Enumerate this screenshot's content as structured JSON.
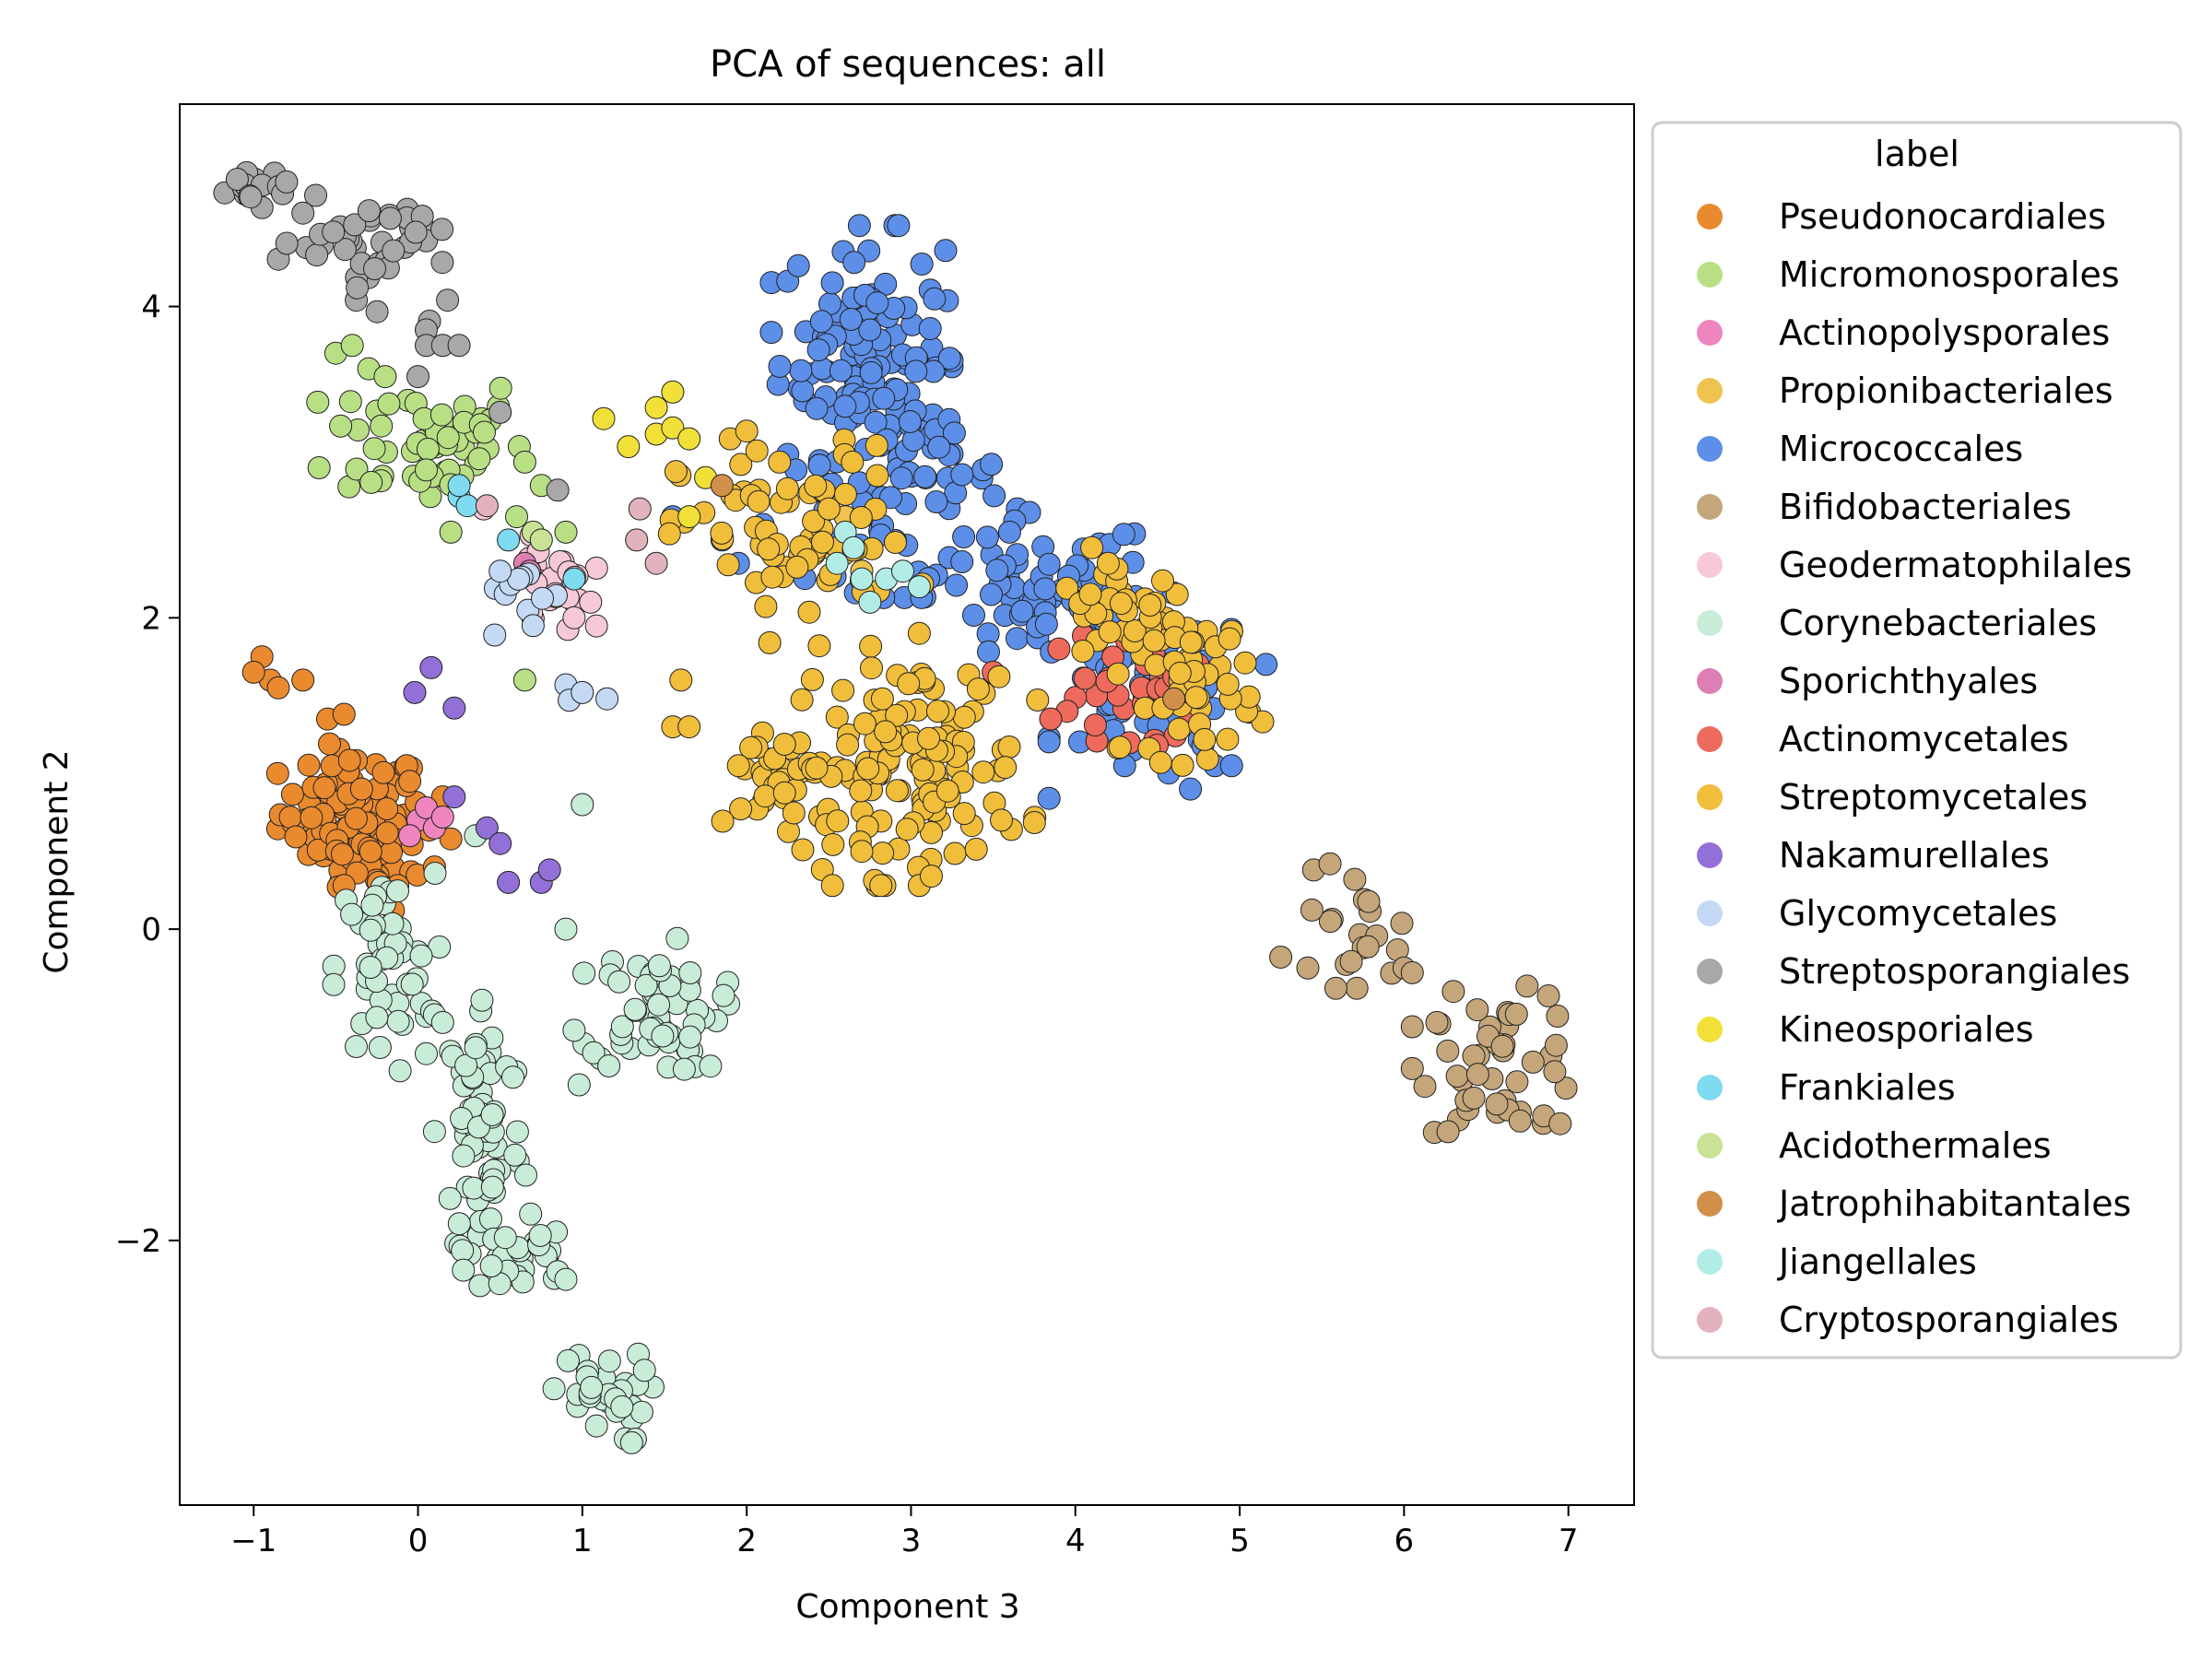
{
  "chart_data": {
    "type": "scatter",
    "title": "PCA of sequences: all",
    "xlabel": "Component 3",
    "ylabel": "Component 2",
    "xlim": [
      -1.45,
      7.4
    ],
    "ylim": [
      -3.7,
      5.3
    ],
    "xticks": [
      -1,
      0,
      1,
      2,
      3,
      4,
      5,
      6,
      7
    ],
    "xtick_labels": [
      "−1",
      "0",
      "1",
      "2",
      "3",
      "4",
      "5",
      "6",
      "7"
    ],
    "yticks": [
      -2,
      0,
      2,
      4
    ],
    "ytick_labels": [
      "−2",
      "0",
      "2",
      "4"
    ],
    "grid": false,
    "legend": {
      "title": "label",
      "placement": "outside-right"
    },
    "series": [
      {
        "name": "Pseudonocardiales",
        "color": "#ea8a2f",
        "clusters": [
          {
            "center": [
              -0.4,
              0.75
            ],
            "spread": [
              0.22,
              0.2
            ],
            "n": 90
          },
          {
            "center": [
              -0.2,
              0.45
            ],
            "spread": [
              0.15,
              0.12
            ],
            "n": 20
          }
        ],
        "points": [
          [
            -0.95,
            1.75
          ],
          [
            -0.9,
            1.6
          ],
          [
            -0.85,
            1.55
          ],
          [
            -0.7,
            1.6
          ],
          [
            -0.55,
            1.35
          ],
          [
            -0.45,
            1.38
          ],
          [
            -0.05,
            0.95
          ],
          [
            0.15,
            0.85
          ],
          [
            0.2,
            0.58
          ],
          [
            0.1,
            0.4
          ],
          [
            -0.45,
            0.28
          ],
          [
            -0.15,
            0.12
          ],
          [
            -1.0,
            1.65
          ]
        ]
      },
      {
        "name": "Micromonosporales",
        "color": "#b9df85",
        "clusters": [
          {
            "center": [
              0.05,
              3.15
            ],
            "spread": [
              0.3,
              0.22
            ],
            "n": 55
          }
        ],
        "points": [
          [
            -0.5,
            3.7
          ],
          [
            -0.4,
            3.75
          ],
          [
            -0.3,
            3.6
          ],
          [
            -0.2,
            3.55
          ],
          [
            0.65,
            3.0
          ],
          [
            0.75,
            2.85
          ],
          [
            0.6,
            2.65
          ],
          [
            0.9,
            2.55
          ],
          [
            0.65,
            1.6
          ],
          [
            0.2,
            2.55
          ],
          [
            0.05,
            2.95
          ]
        ]
      },
      {
        "name": "Actinopolysporales",
        "color": "#ef85bf",
        "clusters": [],
        "points": [
          [
            0.0,
            0.7
          ],
          [
            0.05,
            0.78
          ],
          [
            0.1,
            0.65
          ],
          [
            0.15,
            0.72
          ],
          [
            -0.05,
            0.6
          ]
        ]
      },
      {
        "name": "Propionibacteriales",
        "color": "#f0c350",
        "clusters": [],
        "points": [
          [
            2.6,
            2.65
          ],
          [
            2.5,
            2.45
          ],
          [
            2.7,
            2.3
          ]
        ]
      },
      {
        "name": "Micrococcales",
        "color": "#5d8fe8",
        "clusters": [
          {
            "center": [
              2.7,
              3.75
            ],
            "spread": [
              0.25,
              0.35
            ],
            "n": 110
          },
          {
            "center": [
              2.95,
              2.9
            ],
            "spread": [
              0.3,
              0.35
            ],
            "n": 70
          },
          {
            "center": [
              3.8,
              2.15
            ],
            "spread": [
              0.35,
              0.25
            ],
            "n": 70
          },
          {
            "center": [
              4.5,
              1.5
            ],
            "spread": [
              0.3,
              0.3
            ],
            "n": 45
          }
        ],
        "points": [
          [
            1.55,
            2.65
          ],
          [
            1.85,
            2.5
          ],
          [
            1.95,
            2.35
          ],
          [
            2.1,
            2.6
          ],
          [
            2.25,
            3.05
          ],
          [
            2.3,
            2.95
          ],
          [
            4.85,
            1.05
          ],
          [
            4.95,
            1.05
          ],
          [
            4.7,
            0.9
          ],
          [
            4.35,
            1.15
          ],
          [
            4.3,
            1.05
          ],
          [
            3.6,
            2.55
          ]
        ]
      },
      {
        "name": "Bifidobacteriales",
        "color": "#c4a67a",
        "clusters": [
          {
            "center": [
              6.6,
              -0.85
            ],
            "spread": [
              0.25,
              0.22
            ],
            "n": 45
          },
          {
            "center": [
              5.7,
              -0.05
            ],
            "spread": [
              0.2,
              0.15
            ],
            "n": 18
          }
        ],
        "points": [
          [
            5.25,
            -0.18
          ],
          [
            5.45,
            0.38
          ],
          [
            5.55,
            0.42
          ],
          [
            5.7,
            0.32
          ],
          [
            6.0,
            -0.25
          ],
          [
            6.05,
            -0.28
          ],
          [
            6.85,
            -1.2
          ],
          [
            6.95,
            -1.25
          ],
          [
            6.2,
            -0.6
          ],
          [
            6.3,
            -0.4
          ]
        ]
      },
      {
        "name": "Geodermatophilales",
        "color": "#f7c9d7",
        "clusters": [
          {
            "center": [
              0.8,
              2.2
            ],
            "spread": [
              0.13,
              0.15
            ],
            "n": 28
          }
        ],
        "points": [
          [
            0.4,
            2.7
          ],
          [
            0.95,
            2.0
          ],
          [
            1.05,
            2.1
          ]
        ]
      },
      {
        "name": "Corynebacteriales",
        "color": "#c9ecd8",
        "clusters": [
          {
            "center": [
              -0.2,
              -0.25
            ],
            "spread": [
              0.15,
              0.3
            ],
            "n": 50
          },
          {
            "center": [
              0.4,
              -1.3
            ],
            "spread": [
              0.12,
              0.45
            ],
            "n": 75
          },
          {
            "center": [
              0.6,
              -2.1
            ],
            "spread": [
              0.15,
              0.15
            ],
            "n": 25
          },
          {
            "center": [
              1.45,
              -0.5
            ],
            "spread": [
              0.2,
              0.2
            ],
            "n": 60
          },
          {
            "center": [
              1.1,
              -3.0
            ],
            "spread": [
              0.15,
              0.15
            ],
            "n": 30
          }
        ],
        "points": [
          [
            0.9,
            0.0
          ],
          [
            1.0,
            0.8
          ],
          [
            0.35,
            0.6
          ],
          [
            0.1,
            -0.55
          ],
          [
            0.15,
            -0.6
          ],
          [
            0.05,
            -0.8
          ],
          [
            0.1,
            -1.3
          ],
          [
            0.85,
            -2.2
          ],
          [
            0.9,
            -2.25
          ],
          [
            1.78,
            -0.88
          ],
          [
            1.62,
            -0.9
          ],
          [
            1.3,
            -3.3
          ],
          [
            0.95,
            -0.65
          ],
          [
            0.98,
            -1.0
          ]
        ]
      },
      {
        "name": "Sporichthyales",
        "color": "#de7fb3",
        "clusters": [],
        "points": [
          [
            0.65,
            2.35
          ],
          [
            0.68,
            2.3
          ]
        ]
      },
      {
        "name": "Actinomycetales",
        "color": "#ee6a5c",
        "clusters": [
          {
            "center": [
              4.35,
              1.5
            ],
            "spread": [
              0.18,
              0.2
            ],
            "n": 30
          }
        ],
        "points": [
          [
            3.5,
            1.65
          ],
          [
            3.9,
            1.8
          ],
          [
            3.95,
            1.4
          ],
          [
            3.85,
            1.35
          ],
          [
            4.55,
            1.55
          ],
          [
            4.6,
            1.62
          ]
        ]
      },
      {
        "name": "Streptomycetales",
        "color": "#f0be3b",
        "clusters": [
          {
            "center": [
              2.3,
              2.5
            ],
            "spread": [
              0.35,
              0.3
            ],
            "n": 70
          },
          {
            "center": [
              2.25,
              0.95
            ],
            "spread": [
              0.18,
              0.2
            ],
            "n": 35
          },
          {
            "center": [
              3.0,
              1.05
            ],
            "spread": [
              0.35,
              0.35
            ],
            "n": 130
          },
          {
            "center": [
              4.7,
              1.6
            ],
            "spread": [
              0.2,
              0.25
            ],
            "n": 55
          },
          {
            "center": [
              4.3,
              2.05
            ],
            "spread": [
              0.2,
              0.12
            ],
            "n": 25
          }
        ],
        "points": [
          [
            1.9,
            3.15
          ],
          [
            2.0,
            3.2
          ],
          [
            2.2,
            3.0
          ],
          [
            1.55,
            1.3
          ],
          [
            1.65,
            1.3
          ],
          [
            1.6,
            1.6
          ],
          [
            3.55,
            0.7
          ],
          [
            3.05,
            1.9
          ],
          [
            4.1,
            2.45
          ],
          [
            4.2,
            2.35
          ],
          [
            1.95,
            1.05
          ],
          [
            2.7,
            0.5
          ],
          [
            2.5,
            2.7
          ]
        ]
      },
      {
        "name": "Nakamurellales",
        "color": "#9370d8",
        "clusters": [],
        "points": [
          [
            0.08,
            1.68
          ],
          [
            -0.02,
            1.52
          ],
          [
            0.22,
            1.42
          ],
          [
            0.22,
            0.85
          ],
          [
            0.42,
            0.65
          ],
          [
            0.5,
            0.55
          ],
          [
            0.55,
            0.3
          ],
          [
            0.75,
            0.3
          ],
          [
            0.8,
            0.38
          ]
        ]
      },
      {
        "name": "Glycomycetales",
        "color": "#c4d9f4",
        "clusters": [
          {
            "center": [
              0.6,
              2.15
            ],
            "spread": [
              0.12,
              0.12
            ],
            "n": 10
          }
        ],
        "points": [
          [
            0.9,
            1.57
          ],
          [
            0.92,
            1.47
          ],
          [
            1.0,
            1.52
          ],
          [
            1.15,
            1.48
          ],
          [
            0.5,
            2.3
          ],
          [
            0.7,
            1.95
          ]
        ]
      },
      {
        "name": "Streptosporangiales",
        "color": "#a8a8a8",
        "clusters": [
          {
            "center": [
              -1.0,
              4.75
            ],
            "spread": [
              0.08,
              0.08
            ],
            "n": 18
          },
          {
            "center": [
              -0.35,
              4.45
            ],
            "spread": [
              0.25,
              0.12
            ],
            "n": 35
          },
          {
            "center": [
              -0.15,
              4.15
            ],
            "spread": [
              0.15,
              0.15
            ],
            "n": 10
          }
        ],
        "points": [
          [
            -0.7,
            4.6
          ],
          [
            -0.8,
            4.8
          ],
          [
            0.05,
            3.85
          ],
          [
            0.05,
            3.75
          ],
          [
            0.15,
            3.75
          ],
          [
            0.25,
            3.75
          ],
          [
            0.0,
            3.55
          ],
          [
            0.5,
            3.32
          ],
          [
            0.85,
            2.82
          ]
        ]
      },
      {
        "name": "Kineosporiales",
        "color": "#f1e037",
        "clusters": [],
        "points": [
          [
            1.13,
            3.28
          ],
          [
            1.28,
            3.1
          ],
          [
            1.45,
            3.35
          ],
          [
            1.55,
            3.45
          ],
          [
            1.45,
            3.18
          ],
          [
            1.55,
            3.22
          ],
          [
            1.65,
            3.15
          ],
          [
            1.65,
            2.65
          ],
          [
            1.75,
            2.9
          ]
        ]
      },
      {
        "name": "Frankiales",
        "color": "#7fdbef",
        "clusters": [],
        "points": [
          [
            0.25,
            2.78
          ],
          [
            0.3,
            2.72
          ],
          [
            0.55,
            2.5
          ],
          [
            0.95,
            2.25
          ],
          [
            0.25,
            2.85
          ]
        ]
      },
      {
        "name": "Acidothermales",
        "color": "#c9e295",
        "clusters": [],
        "points": [
          [
            0.7,
            2.55
          ],
          [
            0.75,
            2.5
          ]
        ]
      },
      {
        "name": "Jatrophihabitantales",
        "color": "#d28f4a",
        "clusters": [],
        "points": [
          [
            1.85,
            2.85
          ],
          [
            4.6,
            1.48
          ]
        ]
      },
      {
        "name": "Jiangellales",
        "color": "#b2ece6",
        "clusters": [],
        "points": [
          [
            2.6,
            2.55
          ],
          [
            2.65,
            2.45
          ],
          [
            2.55,
            2.35
          ],
          [
            2.7,
            2.25
          ],
          [
            2.85,
            2.25
          ],
          [
            2.95,
            2.3
          ],
          [
            3.05,
            2.2
          ],
          [
            2.75,
            2.1
          ]
        ]
      },
      {
        "name": "Cryptosporangiales",
        "color": "#e3b3bd",
        "clusters": [],
        "points": [
          [
            1.35,
            2.7
          ],
          [
            1.33,
            2.5
          ],
          [
            1.45,
            2.35
          ],
          [
            0.42,
            2.72
          ]
        ]
      }
    ]
  }
}
